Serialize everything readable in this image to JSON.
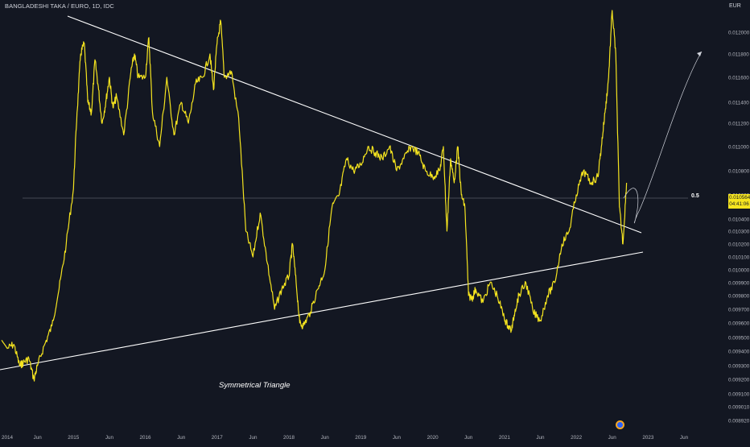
{
  "header": {
    "title": "BANGLADESHI TAKA / EURO, 1D, IDC",
    "currency": "EUR"
  },
  "price_tag": {
    "price": "0.010564",
    "countdown": "04:41:06"
  },
  "annotation": "Symmetrical Triangle",
  "fib_label": "0.5",
  "colors": {
    "background": "#131722",
    "price_line": "#f5e41f",
    "trendline": "#ffffff",
    "axis_text": "#b2b5be"
  },
  "chart_data": {
    "type": "line",
    "title": "BANGLADESHI TAKA / EURO, 1D, IDC",
    "xlabel": "",
    "ylabel": "",
    "x_ticks": [
      "2014",
      "Jun",
      "2015",
      "Jun",
      "2016",
      "Jun",
      "2017",
      "Jun",
      "2018",
      "Jun",
      "2019",
      "Jun",
      "2020",
      "Jun",
      "2021",
      "Jun",
      "2022",
      "Jun",
      "2023",
      "Jun"
    ],
    "x_tick_values": [
      2014.0,
      2014.5,
      2015.0,
      2015.5,
      2016.0,
      2016.5,
      2017.0,
      2017.5,
      2018.0,
      2018.5,
      2019.0,
      2019.5,
      2020.0,
      2020.5,
      2021.0,
      2021.5,
      2022.0,
      2022.5,
      2023.0,
      2023.5
    ],
    "y_ticks": [
      "0.012000",
      "0.011800",
      "0.011600",
      "0.011400",
      "0.011200",
      "0.011000",
      "0.010800",
      "0.010600",
      "0.010400",
      "0.010300",
      "0.010200",
      "0.010100",
      "0.010000",
      "0.009900",
      "0.009800",
      "0.009700",
      "0.009600",
      "0.009500",
      "0.009400",
      "0.009300",
      "0.009200",
      "0.009100",
      "0.009010",
      "0.008920"
    ],
    "xlim": [
      2014.0,
      2023.8
    ],
    "ylim_log": true,
    "grid": false,
    "legend": "none",
    "series": [
      {
        "color": "#f5e41f",
        "x": [
          2014.0,
          2014.08,
          2014.17,
          2014.25,
          2014.3,
          2014.38,
          2014.45,
          2014.5,
          2014.6,
          2014.7,
          2014.8,
          2014.9,
          2015.0,
          2015.05,
          2015.1,
          2015.15,
          2015.2,
          2015.25,
          2015.3,
          2015.35,
          2015.4,
          2015.45,
          2015.5,
          2015.55,
          2015.6,
          2015.7,
          2015.8,
          2015.85,
          2015.9,
          2016.0,
          2016.05,
          2016.1,
          2016.2,
          2016.3,
          2016.4,
          2016.5,
          2016.6,
          2016.7,
          2016.8,
          2016.9,
          2016.95,
          2017.0,
          2017.05,
          2017.1,
          2017.2,
          2017.3,
          2017.4,
          2017.5,
          2017.6,
          2017.7,
          2017.8,
          2017.9,
          2018.0,
          2018.05,
          2018.1,
          2018.15,
          2018.2,
          2018.3,
          2018.4,
          2018.5,
          2018.6,
          2018.7,
          2018.8,
          2018.9,
          2019.0,
          2019.1,
          2019.2,
          2019.3,
          2019.4,
          2019.5,
          2019.6,
          2019.7,
          2019.8,
          2019.9,
          2020.0,
          2020.1,
          2020.15,
          2020.2,
          2020.25,
          2020.3,
          2020.35,
          2020.4,
          2020.45,
          2020.5,
          2020.55,
          2020.6,
          2020.7,
          2020.8,
          2020.9,
          2021.0,
          2021.05,
          2021.1,
          2021.15,
          2021.2,
          2021.3,
          2021.4,
          2021.5,
          2021.6,
          2021.7,
          2021.8,
          2021.9,
          2022.0,
          2022.1,
          2022.2,
          2022.3,
          2022.35,
          2022.4,
          2022.45,
          2022.5,
          2022.55,
          2022.6,
          2022.65,
          2022.7
        ],
        "y": [
          0.00948,
          0.00942,
          0.00945,
          0.0093,
          0.00932,
          0.00935,
          0.0092,
          0.0093,
          0.00945,
          0.00958,
          0.00985,
          0.0102,
          0.01065,
          0.0113,
          0.0118,
          0.0119,
          0.0114,
          0.0113,
          0.01175,
          0.0115,
          0.0112,
          0.0114,
          0.0116,
          0.01135,
          0.01145,
          0.0111,
          0.01165,
          0.0118,
          0.0116,
          0.0116,
          0.01195,
          0.0113,
          0.011,
          0.0116,
          0.0111,
          0.0114,
          0.0112,
          0.01155,
          0.0116,
          0.0118,
          0.0115,
          0.0119,
          0.0121,
          0.0116,
          0.01165,
          0.01125,
          0.0103,
          0.0101,
          0.01045,
          0.01005,
          0.0097,
          0.00985,
          0.00995,
          0.0102,
          0.0099,
          0.0096,
          0.00958,
          0.00968,
          0.00985,
          0.01,
          0.0105,
          0.0106,
          0.0109,
          0.0108,
          0.01085,
          0.011,
          0.01095,
          0.0109,
          0.011,
          0.0108,
          0.0109,
          0.011,
          0.01095,
          0.0108,
          0.01075,
          0.0108,
          0.011,
          0.0103,
          0.0109,
          0.0107,
          0.011,
          0.0106,
          0.0105,
          0.0098,
          0.00978,
          0.00985,
          0.00975,
          0.0099,
          0.0098,
          0.00963,
          0.00958,
          0.00955,
          0.0097,
          0.0098,
          0.0099,
          0.00968,
          0.00962,
          0.0098,
          0.0099,
          0.0102,
          0.0103,
          0.0106,
          0.0108,
          0.0107,
          0.01075,
          0.011,
          0.0113,
          0.0116,
          0.0122,
          0.0118,
          0.0105,
          0.0102,
          0.0107
        ]
      }
    ]
  }
}
